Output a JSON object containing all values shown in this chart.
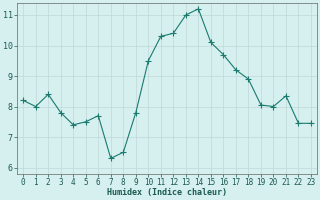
{
  "x": [
    0,
    1,
    2,
    3,
    4,
    5,
    6,
    7,
    8,
    9,
    10,
    11,
    12,
    13,
    14,
    15,
    16,
    17,
    18,
    19,
    20,
    21,
    22,
    23
  ],
  "y": [
    8.2,
    8.0,
    8.4,
    7.8,
    7.4,
    7.5,
    7.7,
    6.3,
    6.5,
    7.8,
    9.5,
    10.3,
    10.4,
    11.0,
    11.2,
    10.1,
    9.7,
    9.2,
    8.9,
    8.05,
    8.0,
    8.35,
    7.45,
    7.45
  ],
  "line_color": "#1a7a6e",
  "marker": "D",
  "marker_size": 2.0,
  "bg_color": "#d6f0ef",
  "grid_color": "#c0d8d8",
  "xlabel": "Humidex (Indice chaleur)",
  "ylim": [
    5.8,
    11.4
  ],
  "xlim": [
    -0.5,
    23.5
  ],
  "yticks": [
    6,
    7,
    8,
    9,
    10,
    11
  ],
  "xticks": [
    0,
    1,
    2,
    3,
    4,
    5,
    6,
    7,
    8,
    9,
    10,
    11,
    12,
    13,
    14,
    15,
    16,
    17,
    18,
    19,
    20,
    21,
    22,
    23
  ],
  "xlabel_fontsize": 6.0,
  "tick_fontsize": 5.5,
  "ytick_fontsize": 6.0
}
